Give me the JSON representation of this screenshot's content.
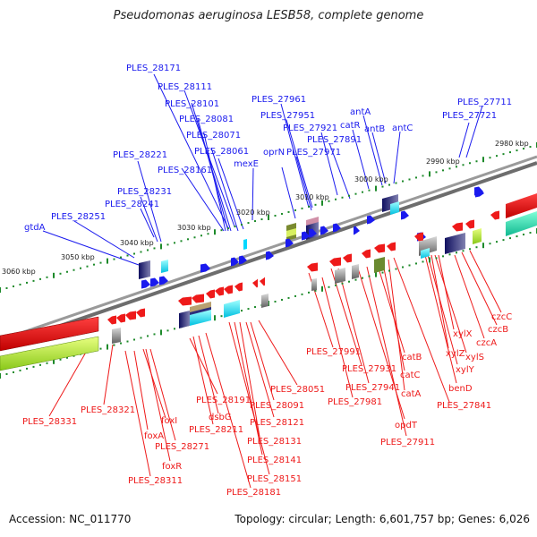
{
  "title": "Pseudomonas aeruginosa LESB58, complete genome",
  "accession": "Accession: NC_011770",
  "summary": "Topology: circular; Length: 6,601,757 bp; Genes: 6,026",
  "colors": {
    "forward_label": "#1a1aee",
    "reverse_label": "#ee1a1a",
    "tick": "#1d8a2a",
    "backbone": "#808080"
  },
  "scale_labels": [
    "2980 kbp",
    "2990 kbp",
    "3000 kbp",
    "3010 kbp",
    "3020 kbp",
    "3030 kbp",
    "3040 kbp",
    "3050 kbp",
    "3060 kbp"
  ],
  "forward_labels": [
    "PLES_28171",
    "PLES_28111",
    "PLES_28101",
    "PLES_28081",
    "PLES_28071",
    "PLES_28061",
    "PLES_28161",
    "PLES_28221",
    "PLES_28231",
    "PLES_28241",
    "PLES_28251",
    "gtdA",
    "PLES_27961",
    "PLES_27951",
    "PLES_27971",
    "oprN",
    "mexE",
    "catR",
    "antA",
    "antB",
    "antC",
    "PLES_27921",
    "PLES_27891",
    "PLES_27721",
    "PLES_27711"
  ],
  "reverse_labels": [
    "PLES_28331",
    "PLES_28321",
    "foxA",
    "foxI",
    "PLES_28271",
    "foxR",
    "PLES_28311",
    "PLES_28191",
    "dsbG",
    "PLES_28211",
    "PLES_28181",
    "PLES_28151",
    "PLES_28141",
    "PLES_28131",
    "PLES_28121",
    "PLES_28091",
    "PLES_28051",
    "PLES_27991",
    "PLES_27931",
    "PLES_27941",
    "PLES_27981",
    "catB",
    "catC",
    "catA",
    "opdT",
    "PLES_27911",
    "PLES_27841",
    "benD",
    "xylY",
    "xylZ",
    "xylS",
    "xylX",
    "czcA",
    "czcB",
    "czcC"
  ]
}
